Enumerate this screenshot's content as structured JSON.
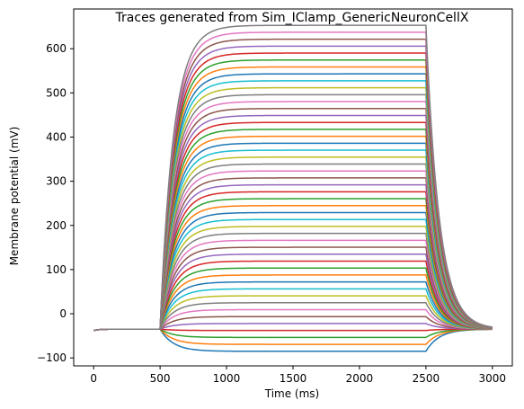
{
  "chart_data": {
    "type": "line",
    "title": "Traces generated from Sim_IClamp_GenericNeuronCellX",
    "xlabel": "Time (ms)",
    "ylabel": "Membrane potential (mV)",
    "xlim": [
      -150,
      3150
    ],
    "ylim": [
      -118,
      690
    ],
    "x_ticks": [
      0,
      500,
      1000,
      1500,
      2000,
      2500,
      3000
    ],
    "y_ticks": [
      -100,
      0,
      100,
      200,
      300,
      400,
      500,
      600
    ],
    "grid": false,
    "legend": "none",
    "trace_model": {
      "time_ms": [
        0,
        3000
      ],
      "baseline_mv": -38,
      "baseline_settle_mv": -35,
      "stim_start_ms": 500,
      "stim_end_ms": 2500,
      "tau_ms": 100,
      "plateau_min_mv": -85,
      "plateau_max_mv": 653,
      "n_traces": 48
    },
    "colors": [
      "#1f77b4",
      "#ff7f0e",
      "#2ca02c",
      "#d62728",
      "#9467bd",
      "#8c564b",
      "#e377c2",
      "#7f7f7f",
      "#bcbd22",
      "#17becf"
    ]
  }
}
